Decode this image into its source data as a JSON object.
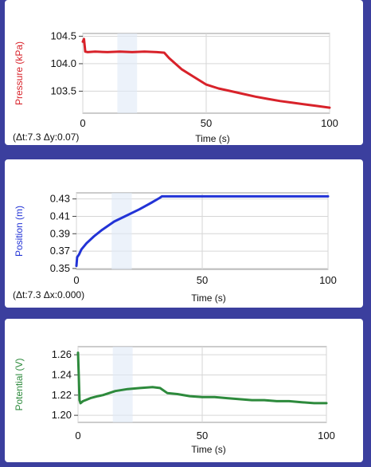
{
  "chart_data": [
    {
      "type": "line",
      "xlabel": "Time (s)",
      "ylabel": "Pressure (kPa)",
      "xlim": [
        0,
        100
      ],
      "ylim": [
        103.1,
        104.55
      ],
      "xticks": [
        "0",
        "50",
        "100"
      ],
      "yticks": [
        "103.5",
        "104.0",
        "104.5"
      ],
      "grid": true,
      "readout": "(Δt:7.3 Δy:0.07)",
      "color": "#d8222a",
      "x": [
        0,
        0.5,
        1,
        2,
        5,
        10,
        15,
        20,
        25,
        30,
        33,
        35,
        38,
        40,
        45,
        50,
        55,
        60,
        65,
        70,
        75,
        80,
        85,
        90,
        95,
        100
      ],
      "y": [
        104.4,
        104.45,
        104.22,
        104.21,
        104.22,
        104.21,
        104.22,
        104.21,
        104.22,
        104.21,
        104.2,
        104.1,
        103.98,
        103.9,
        103.76,
        103.62,
        103.55,
        103.5,
        103.45,
        103.4,
        103.36,
        103.32,
        103.29,
        103.26,
        103.23,
        103.2
      ]
    },
    {
      "type": "line",
      "xlabel": "Time (s)",
      "ylabel": "Position (m)",
      "xlim": [
        0,
        100
      ],
      "ylim": [
        0.349,
        0.437
      ],
      "xticks": [
        "0",
        "50",
        "100"
      ],
      "yticks": [
        "0.35",
        "0.37",
        "0.39",
        "0.41",
        "0.43"
      ],
      "grid": true,
      "readout": "(Δt:7.3 Δx:0.000)",
      "color": "#2233d6",
      "x": [
        0,
        0.3,
        1,
        2,
        4,
        7,
        10,
        15,
        20,
        25,
        30,
        33,
        34,
        40,
        50,
        60,
        70,
        80,
        90,
        100
      ],
      "y": [
        0.353,
        0.363,
        0.366,
        0.372,
        0.379,
        0.387,
        0.394,
        0.404,
        0.411,
        0.418,
        0.426,
        0.431,
        0.433,
        0.433,
        0.433,
        0.433,
        0.433,
        0.433,
        0.433,
        0.433
      ]
    },
    {
      "type": "line",
      "xlabel": "Time (s)",
      "ylabel": "Potential (V)",
      "xlim": [
        0,
        100
      ],
      "ylim": [
        1.193,
        1.268
      ],
      "xticks": [
        "0",
        "50",
        "100"
      ],
      "yticks": [
        "1.20",
        "1.22",
        "1.24",
        "1.26"
      ],
      "grid": true,
      "color": "#2d8a3c",
      "x": [
        0,
        0.3,
        0.6,
        1,
        2,
        3,
        5,
        8,
        10,
        15,
        20,
        25,
        30,
        33,
        36,
        40,
        45,
        50,
        55,
        60,
        65,
        70,
        75,
        80,
        85,
        90,
        95,
        100
      ],
      "y": [
        1.262,
        1.24,
        1.215,
        1.212,
        1.214,
        1.215,
        1.217,
        1.219,
        1.22,
        1.224,
        1.226,
        1.227,
        1.228,
        1.227,
        1.222,
        1.221,
        1.219,
        1.218,
        1.218,
        1.217,
        1.216,
        1.215,
        1.215,
        1.214,
        1.214,
        1.213,
        1.212,
        1.212
      ]
    }
  ]
}
